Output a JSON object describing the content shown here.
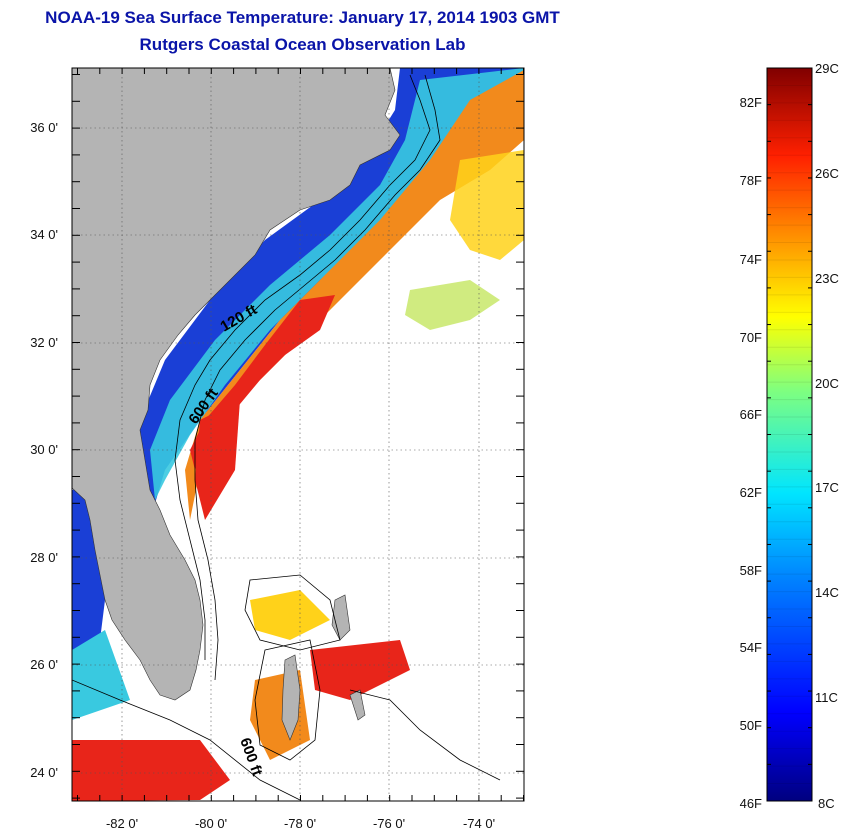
{
  "header": {
    "title": "NOAA-19 Sea Surface Temperature:  January 17, 2014 1903 GMT",
    "subtitle": "Rutgers Coastal Ocean Observation Lab"
  },
  "map": {
    "lon_range": [
      -83,
      -73
    ],
    "lat_range": [
      23,
      37
    ],
    "lon_ticks": [
      "-82 0'",
      "-80 0'",
      "-78 0'",
      "-76 0'",
      "-74 0'"
    ],
    "lat_ticks": [
      "36 0'",
      "34 0'",
      "32 0'",
      "30 0'",
      "28 0'",
      "26 0'",
      "24 0'"
    ],
    "contour_labels": [
      "120 ft",
      "600 ft",
      "600 ft"
    ],
    "colors": {
      "land": "#b4b4b4",
      "no_data": "#ffffff",
      "nearshore_cold": "#1a3fd6",
      "shelf_mid": "#39c9e0",
      "gulf_stream": "#e8251a"
    }
  },
  "colorbar": {
    "range_c": [
      8,
      29
    ],
    "range_f": [
      46,
      84
    ],
    "celsius_labels": [
      "29C",
      "26C",
      "23C",
      "20C",
      "17C",
      "14C",
      "11C",
      "8C"
    ],
    "fahrenheit_labels": [
      "82F",
      "78F",
      "74F",
      "70F",
      "66F",
      "62F",
      "58F",
      "54F",
      "50F",
      "46F"
    ]
  }
}
